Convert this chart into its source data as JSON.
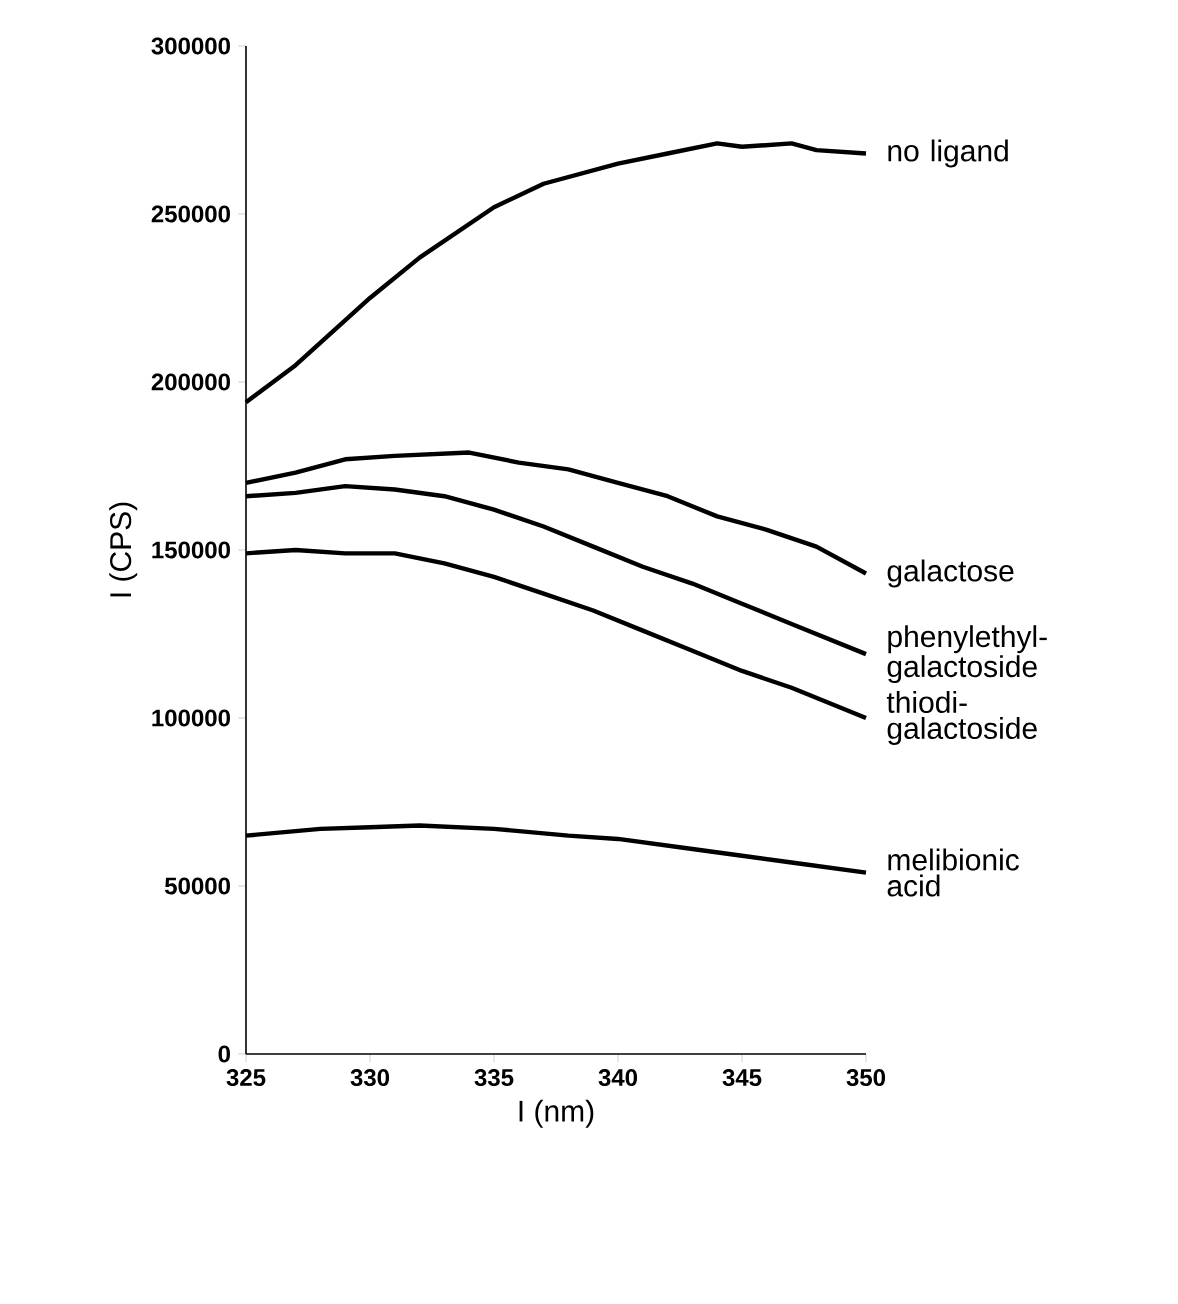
{
  "chart_data": {
    "type": "line",
    "xlabel": "I (nm)",
    "ylabel": "I (CPS)",
    "xlim": [
      325,
      350
    ],
    "ylim": [
      0,
      300000
    ],
    "xticks": [
      325,
      330,
      335,
      340,
      345,
      350
    ],
    "yticks": [
      0,
      50000,
      100000,
      150000,
      200000,
      250000,
      300000
    ],
    "grid": false,
    "legend": false,
    "marker": "none",
    "line_style": "solid",
    "series": [
      {
        "name": "no ligand",
        "color": "#000000",
        "x": [
          325,
          327,
          330,
          332,
          335,
          337,
          340,
          342,
          344,
          345,
          347,
          348,
          350
        ],
        "values": [
          194000,
          205000,
          225000,
          237000,
          252000,
          259000,
          265000,
          268000,
          271000,
          270000,
          271000,
          269000,
          268000
        ]
      },
      {
        "name": "galactose",
        "color": "#000000",
        "x": [
          325,
          327,
          329,
          331,
          334,
          336,
          338,
          340,
          342,
          344,
          346,
          348,
          350
        ],
        "values": [
          170000,
          173000,
          177000,
          178000,
          179000,
          176000,
          174000,
          170000,
          166000,
          160000,
          156000,
          151000,
          143000
        ]
      },
      {
        "name": "phenylethyl-galactoside",
        "color": "#000000",
        "x": [
          325,
          327,
          329,
          331,
          333,
          335,
          337,
          339,
          341,
          343,
          345,
          347,
          350
        ],
        "values": [
          166000,
          167000,
          169000,
          168000,
          166000,
          162000,
          157000,
          151000,
          145000,
          140000,
          134000,
          128000,
          119000
        ]
      },
      {
        "name": "thiodi-galactoside",
        "color": "#000000",
        "x": [
          325,
          327,
          329,
          331,
          333,
          335,
          337,
          339,
          341,
          343,
          345,
          347,
          350
        ],
        "values": [
          149000,
          150000,
          149000,
          149000,
          146000,
          142000,
          137000,
          132000,
          126000,
          120000,
          114000,
          109000,
          100000
        ]
      },
      {
        "name": "melibionic acid",
        "color": "#000000",
        "x": [
          325,
          328,
          330,
          332,
          335,
          338,
          340,
          343,
          345,
          347,
          350
        ],
        "values": [
          65000,
          67000,
          67500,
          68000,
          67000,
          65000,
          64000,
          61000,
          59000,
          57000,
          54000
        ]
      }
    ]
  }
}
